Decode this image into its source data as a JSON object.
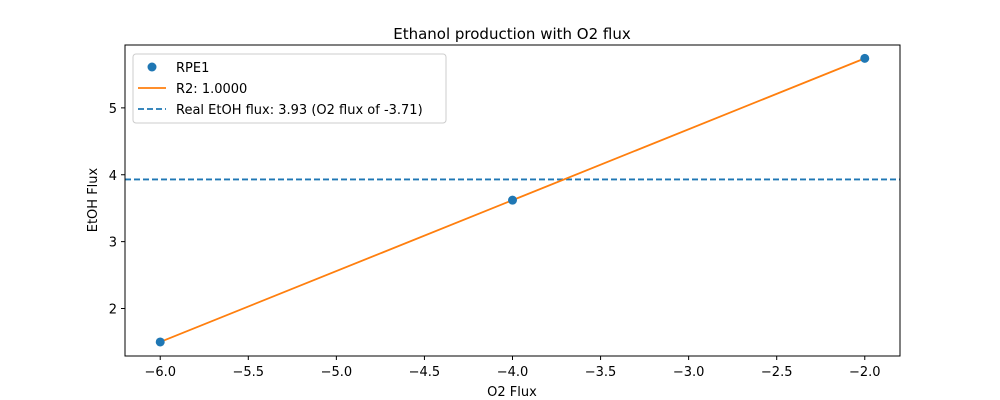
{
  "chart_data": {
    "type": "line",
    "title": "Ethanol production with O2 flux",
    "xlabel": "O2 Flux",
    "ylabel": "EtOH Flux",
    "xlim": [
      -6.2,
      -1.8
    ],
    "ylim": [
      1.29,
      5.94
    ],
    "xticks": [
      -6.0,
      -5.5,
      -5.0,
      -4.5,
      -4.0,
      -3.5,
      -3.0,
      -2.5,
      -2.0
    ],
    "xtick_labels": [
      "−6.0",
      "−5.5",
      "−5.0",
      "−4.5",
      "−4.0",
      "−3.5",
      "−3.0",
      "−2.5",
      "−2.0"
    ],
    "yticks": [
      2,
      3,
      4,
      5
    ],
    "ytick_labels": [
      "2",
      "3",
      "4",
      "5"
    ],
    "grid": false,
    "legend_position": "top-left",
    "series": [
      {
        "name": "RPE1",
        "kind": "scatter",
        "color": "#1f77b4",
        "x": [
          -6.0,
          -4.0,
          -2.0
        ],
        "y": [
          1.5,
          3.62,
          5.74
        ]
      },
      {
        "name": "R2: 1.0000",
        "kind": "line",
        "color": "#ff7f0e",
        "x": [
          -6.0,
          -2.0
        ],
        "y": [
          1.5,
          5.74
        ]
      },
      {
        "name": "Real EtOH flux: 3.93 (O2 flux of -3.71)",
        "kind": "hline",
        "color": "#1f77b4",
        "style": "dashed",
        "y": 3.93
      }
    ]
  }
}
